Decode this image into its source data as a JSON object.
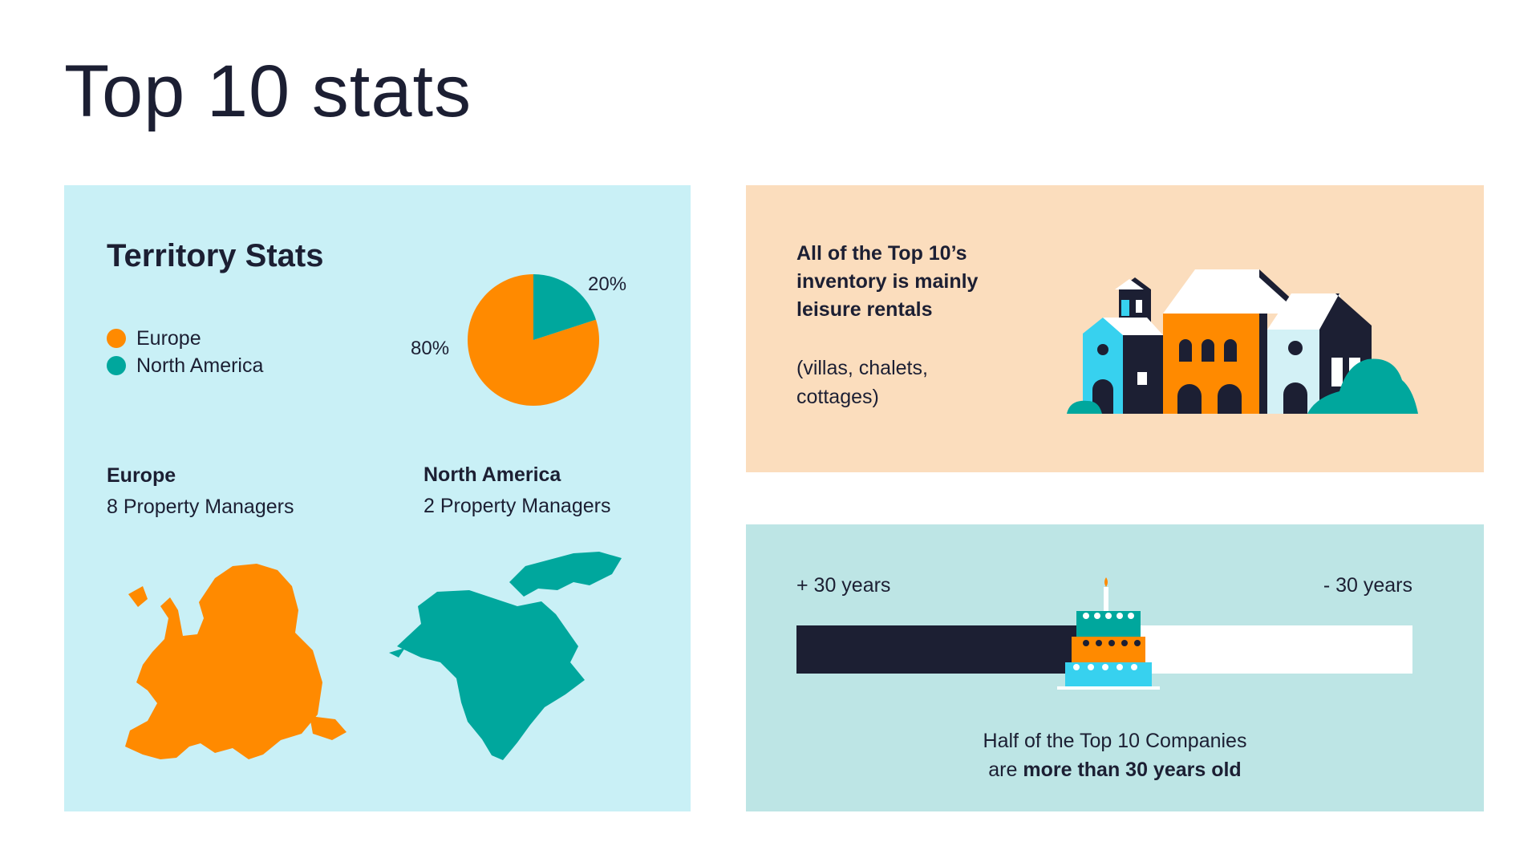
{
  "page": {
    "title": "Top 10 stats"
  },
  "territory": {
    "title": "Territory Stats",
    "legend": [
      {
        "label": "Europe",
        "color": "#ff8a00"
      },
      {
        "label": "North America",
        "color": "#00a79d"
      }
    ],
    "pie": {
      "slices": [
        {
          "label": "80%",
          "value": 80,
          "color": "#ff8a00"
        },
        {
          "label": "20%",
          "value": 20,
          "color": "#00a79d"
        }
      ]
    },
    "regions": [
      {
        "name": "Europe",
        "count": "8 Property Managers",
        "map_icon": "europe-map-icon"
      },
      {
        "name": "North America",
        "count": "2 Property Managers",
        "map_icon": "north-america-map-icon"
      }
    ]
  },
  "inventory": {
    "heading": "All of the Top 10’s inventory is mainly leisure rentals",
    "subtext": "(villas, chalets, cottages)",
    "illustration": "houses-icon"
  },
  "age": {
    "left_label": "+ 30 years",
    "right_label": "- 30 years",
    "fill_fraction": 0.5,
    "caption_line1": "Half of the Top 10 Companies",
    "caption_line2_prefix": "are ",
    "caption_line2_bold": "more than 30 years old",
    "illustration": "birthday-cake-icon"
  }
}
